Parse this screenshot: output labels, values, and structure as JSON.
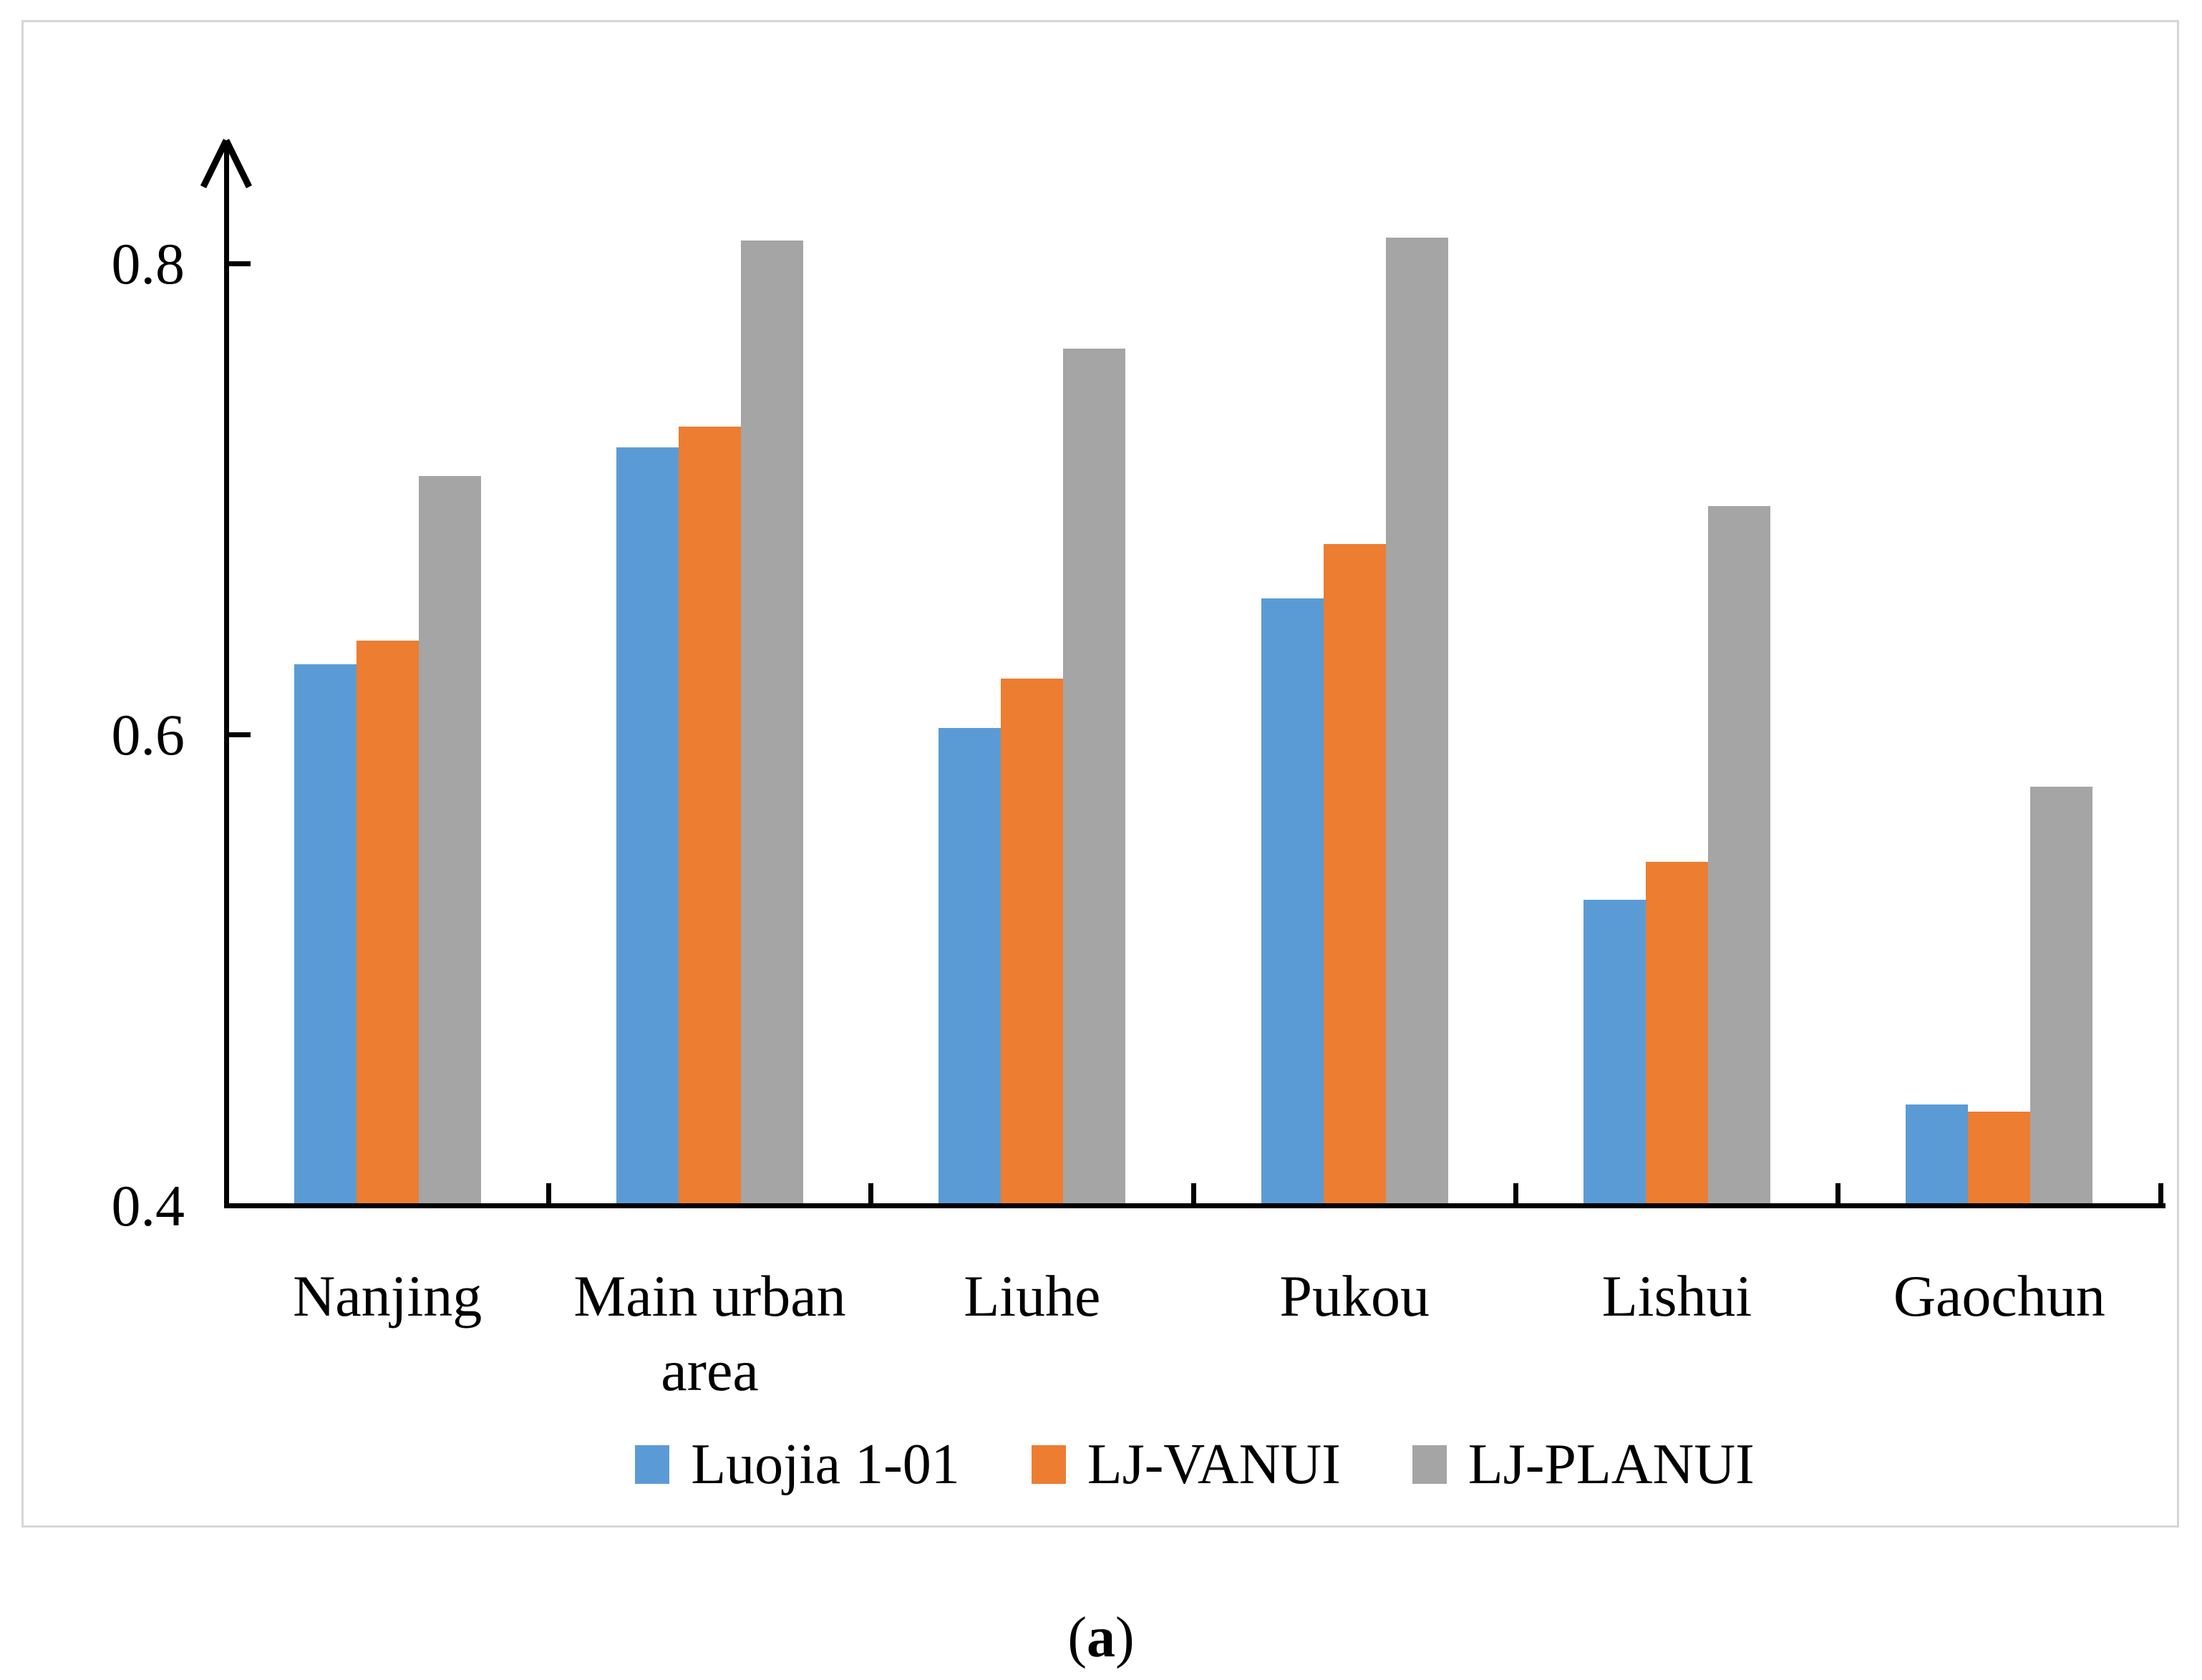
{
  "figure": {
    "caption_prefix": "(",
    "caption_label": "a",
    "caption_suffix": ")"
  },
  "chart_data": {
    "type": "bar",
    "title": "",
    "xlabel": "",
    "ylabel": "",
    "categories": [
      "Nanjing",
      "Main urban area",
      "Liuhe",
      "Pukou",
      "Lishui",
      "Gaochun"
    ],
    "series": [
      {
        "name": "Luojia 1-01",
        "color": "#5B9BD5",
        "values": [
          0.63,
          0.722,
          0.603,
          0.658,
          0.53,
          0.443
        ]
      },
      {
        "name": "LJ-VANUI",
        "color": "#ED7D31",
        "values": [
          0.64,
          0.731,
          0.624,
          0.681,
          0.546,
          0.44
        ]
      },
      {
        "name": "LJ-PLANUI",
        "color": "#A5A5A5",
        "values": [
          0.71,
          0.81,
          0.764,
          0.811,
          0.697,
          0.578
        ]
      }
    ],
    "ylim": [
      0.4,
      0.85
    ],
    "yticks": [
      0.4,
      0.6,
      0.8
    ],
    "ytick_labels": [
      "0.4",
      "0.6",
      "0.8"
    ],
    "grid": false,
    "legend_position": "bottom",
    "axis_color": "#000000"
  }
}
